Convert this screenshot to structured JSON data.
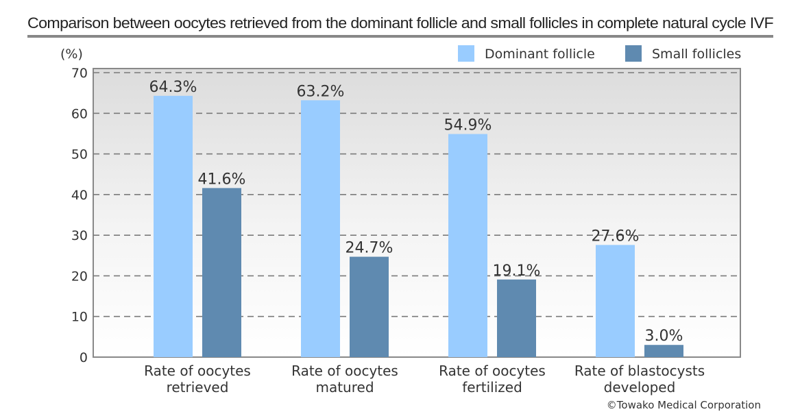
{
  "chart_data": {
    "type": "bar",
    "title": "Comparison between oocytes retrieved from the dominant follicle and small follicles in complete natural cycle IVF",
    "ylabel": "(%)",
    "ylim": [
      0,
      70
    ],
    "yticks": [
      0,
      10,
      20,
      30,
      40,
      50,
      60,
      70
    ],
    "grid": true,
    "legend_position": "top-right",
    "categories": [
      [
        "Rate of oocytes",
        "retrieved"
      ],
      [
        "Rate of oocytes",
        "matured"
      ],
      [
        "Rate of oocytes",
        "fertilized"
      ],
      [
        "Rate of blastocysts",
        "developed"
      ]
    ],
    "series": [
      {
        "name": "Dominant follicle",
        "color": "#99ccff",
        "values": [
          64.3,
          63.2,
          54.9,
          27.6
        ],
        "labels": [
          "64.3%",
          "63.2%",
          "54.9%",
          "27.6%"
        ]
      },
      {
        "name": "Small follicles",
        "color": "#5f8ab0",
        "values": [
          41.6,
          24.7,
          19.1,
          3.0
        ],
        "labels": [
          "41.6%",
          "24.7%",
          "19.1%",
          "3.0%"
        ]
      }
    ]
  },
  "copyright": "©Towako Medical Corporation"
}
